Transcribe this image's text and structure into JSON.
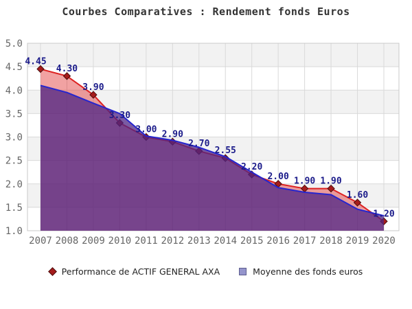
{
  "title": "Courbes Comparatives : Rendement fonds Euros",
  "legend": {
    "items": [
      {
        "label": "Performance de ACTIF GENERAL AXA",
        "marker": "diamond",
        "color": "#a51c1c"
      },
      {
        "label": "Moyenne des fonds euros",
        "marker": "square",
        "color": "#9595cc"
      }
    ]
  },
  "chart_data": {
    "type": "area",
    "title": "Courbes Comparatives : Rendement fonds Euros",
    "x": [
      2007,
      2008,
      2009,
      2010,
      2011,
      2012,
      2013,
      2014,
      2015,
      2016,
      2017,
      2018,
      2019,
      2020
    ],
    "xticks": [
      "2007",
      "2008",
      "2009",
      "2010",
      "2011",
      "2012",
      "2013",
      "2014",
      "2015",
      "2016",
      "2017",
      "2018",
      "2019",
      "2020"
    ],
    "yticks": [
      "5.0",
      "4.5",
      "4.0",
      "3.5",
      "3.0",
      "2.5",
      "2.0",
      "1.5",
      "1.0"
    ],
    "ylim": [
      1.0,
      5.0
    ],
    "ytick_step": 0.5,
    "grid": true,
    "legend_position": "bottom",
    "series": [
      {
        "name": "Performance de ACTIF GENERAL AXA",
        "values": [
          4.45,
          4.3,
          3.9,
          3.3,
          3.0,
          2.9,
          2.7,
          2.55,
          2.2,
          2.0,
          1.9,
          1.9,
          1.6,
          1.2
        ],
        "point_labels": [
          "4.45",
          "4.30",
          "3.90",
          "3.30",
          "3.00",
          "2.90",
          "2.70",
          "2.55",
          "2.20",
          "2.00",
          "1.90",
          "1.90",
          "1.60",
          "1.20"
        ],
        "line_color": "#dd2222",
        "fill": "rgba(221,34,34,0.42)",
        "marker": "diamond",
        "marker_color": "#a51c1c",
        "marker_edge": "#4a0c0c"
      },
      {
        "name": "Moyenne des fonds euros",
        "values": [
          4.1,
          3.95,
          3.72,
          3.5,
          3.02,
          2.93,
          2.78,
          2.58,
          2.25,
          1.92,
          1.82,
          1.77,
          1.46,
          1.32
        ],
        "line_color": "#2525cf",
        "fill": "rgba(78,36,132,0.75)",
        "marker": "none"
      }
    ],
    "label_color": "#1b1b8a",
    "band_colors": [
      "#f2f2f2",
      "#ffffff"
    ],
    "grid_color": "#d9d9d9",
    "border_color": "#c9c9c9",
    "tick_color": "#666666"
  }
}
